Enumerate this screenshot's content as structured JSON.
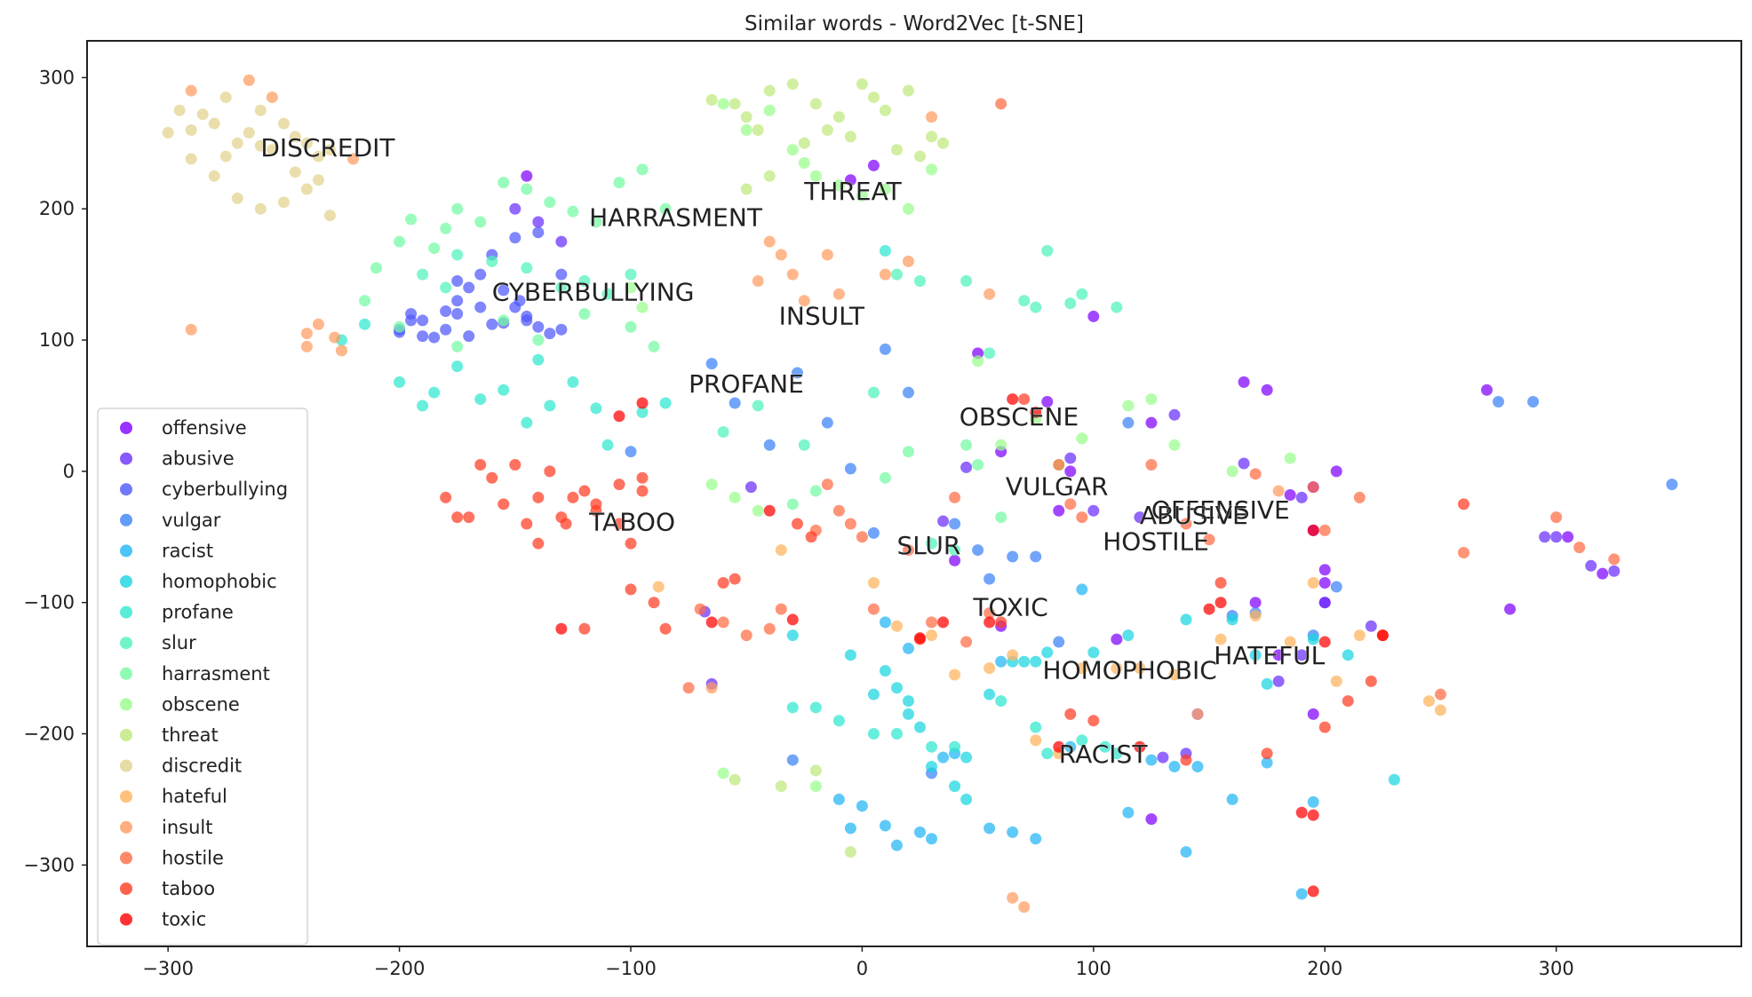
{
  "chart_data": {
    "type": "scatter",
    "title": "Similar words - Word2Vec [t-SNE]",
    "xlabel": "",
    "ylabel": "",
    "xlim": [
      -335,
      380
    ],
    "ylim": [
      -362,
      328
    ],
    "xticks": [
      -300,
      -200,
      -100,
      0,
      100,
      200,
      300
    ],
    "yticks": [
      300,
      200,
      100,
      0,
      -100,
      -200,
      -300
    ],
    "xtick_labels": [
      "−300",
      "−200",
      "−100",
      "0",
      "100",
      "200",
      "300"
    ],
    "ytick_labels": [
      "300",
      "200",
      "100",
      "0",
      "−100",
      "−200",
      "−300"
    ],
    "grid": false,
    "legend_position": "lower-left",
    "series": [
      {
        "name": "offensive",
        "color": "#8000ff",
        "label": "OFFENSIVE",
        "label_pos": [
          125,
          -36
        ],
        "x": [
          -145,
          -5,
          5,
          50,
          60,
          80,
          90,
          100,
          125,
          165,
          175,
          185,
          170,
          180,
          200,
          200,
          205,
          195,
          200,
          305,
          320,
          280,
          270,
          40,
          60,
          85,
          195,
          145,
          125,
          110,
          195
        ],
        "y": [
          225,
          222,
          233,
          90,
          15,
          53,
          0,
          118,
          37,
          68,
          62,
          -18,
          -100,
          -140,
          -85,
          -75,
          0,
          -185,
          -100,
          -50,
          -78,
          -105,
          62,
          -68,
          -118,
          -30,
          -45,
          -185,
          -265,
          -128,
          -12
        ]
      },
      {
        "name": "abusive",
        "color": "#6a2efd",
        "label": "ABUSIVE",
        "label_pos": [
          120,
          -40
        ],
        "x": [
          -150,
          -140,
          -130,
          -48,
          -68,
          -65,
          35,
          45,
          90,
          135,
          140,
          165,
          180,
          190,
          220,
          295,
          300,
          315,
          325,
          190,
          200,
          130,
          100,
          120
        ],
        "y": [
          200,
          190,
          175,
          -12,
          -107,
          -162,
          -38,
          3,
          10,
          43,
          -215,
          6,
          -160,
          -140,
          -118,
          -50,
          -50,
          -72,
          -76,
          -20,
          -100,
          -218,
          -30,
          -35
        ]
      },
      {
        "name": "cyberbullying",
        "color": "#4f58fb",
        "label": "CYBERBULLYING",
        "label_pos": [
          -160,
          130
        ],
        "x": [
          -200,
          -195,
          -190,
          -185,
          -180,
          -175,
          -170,
          -165,
          -160,
          -155,
          -150,
          -145,
          -140,
          -135,
          -130,
          -200,
          -180,
          -160,
          -145,
          -130,
          -175,
          -165,
          -150,
          -140,
          -195,
          -190,
          -175,
          -155,
          -170,
          -148
        ],
        "y": [
          108,
          120,
          115,
          102,
          122,
          130,
          140,
          150,
          165,
          138,
          125,
          118,
          110,
          105,
          150,
          106,
          108,
          112,
          115,
          108,
          145,
          125,
          178,
          182,
          115,
          103,
          120,
          113,
          103,
          130
        ]
      },
      {
        "name": "vulgar",
        "color": "#3b82f6",
        "label": "VULGAR",
        "label_pos": [
          62,
          -18
        ],
        "x": [
          -65,
          -55,
          -40,
          -28,
          -15,
          -5,
          5,
          10,
          20,
          40,
          55,
          65,
          75,
          85,
          115,
          160,
          170,
          195,
          205,
          275,
          290,
          350,
          30,
          -100,
          50,
          -30
        ],
        "y": [
          82,
          52,
          20,
          75,
          37,
          2,
          -47,
          93,
          60,
          -40,
          -82,
          -65,
          -65,
          -130,
          37,
          -110,
          -108,
          -125,
          -88,
          53,
          53,
          -10,
          -230,
          15,
          -60,
          -220
        ]
      },
      {
        "name": "racist",
        "color": "#21b6f5",
        "label": "RACIST",
        "label_pos": [
          85,
          -222
        ],
        "x": [
          -5,
          -10,
          0,
          10,
          15,
          25,
          30,
          40,
          55,
          65,
          75,
          90,
          115,
          135,
          140,
          160,
          175,
          190,
          195,
          145,
          125,
          35,
          95,
          20,
          10,
          60
        ],
        "y": [
          -272,
          -250,
          -255,
          -270,
          -285,
          -275,
          -280,
          -215,
          -272,
          -275,
          -280,
          -210,
          -260,
          -225,
          -290,
          -250,
          -222,
          -322,
          -252,
          -225,
          -220,
          -218,
          -90,
          -135,
          -115,
          -145
        ]
      },
      {
        "name": "homophobic",
        "color": "#18d5e0",
        "label": "HOMOPHOBIC",
        "label_pos": [
          78,
          -158
        ],
        "x": [
          -30,
          -5,
          5,
          10,
          15,
          20,
          25,
          30,
          40,
          45,
          55,
          65,
          70,
          75,
          80,
          100,
          115,
          140,
          160,
          170,
          175,
          195,
          230,
          210,
          20,
          45
        ],
        "y": [
          -125,
          -140,
          -170,
          -152,
          -165,
          -185,
          -195,
          -225,
          -240,
          -218,
          -170,
          -145,
          -145,
          -145,
          -138,
          -138,
          -125,
          -113,
          -113,
          -140,
          -162,
          -128,
          -235,
          -140,
          -175,
          -250
        ]
      },
      {
        "name": "profane",
        "color": "#2ee8cf",
        "label": "PROFANE",
        "label_pos": [
          -75,
          60
        ],
        "x": [
          -225,
          -215,
          -200,
          -190,
          -185,
          -175,
          -165,
          -155,
          -145,
          -135,
          -125,
          -115,
          -110,
          -95,
          -85,
          -30,
          -20,
          -10,
          5,
          15,
          30,
          40,
          60,
          75,
          80,
          95,
          105,
          110,
          -140,
          10
        ],
        "y": [
          100,
          112,
          68,
          50,
          60,
          80,
          55,
          62,
          37,
          50,
          68,
          48,
          20,
          45,
          52,
          -180,
          -180,
          -190,
          -200,
          -200,
          -210,
          -210,
          -175,
          -195,
          -215,
          -205,
          -210,
          -215,
          85,
          168
        ]
      },
      {
        "name": "slur",
        "color": "#4df2b8",
        "label": "SLUR",
        "label_pos": [
          15,
          -63
        ],
        "x": [
          -190,
          -180,
          -175,
          -160,
          -145,
          -130,
          -120,
          -110,
          -100,
          5,
          15,
          25,
          45,
          55,
          70,
          75,
          80,
          90,
          95,
          110,
          30,
          40,
          -60,
          -25,
          -45
        ],
        "y": [
          150,
          140,
          165,
          160,
          155,
          140,
          145,
          135,
          150,
          60,
          150,
          145,
          145,
          90,
          130,
          125,
          168,
          128,
          135,
          125,
          -55,
          -60,
          30,
          20,
          50
        ]
      },
      {
        "name": "harrasment",
        "color": "#73fba2",
        "label": "HARRASMENT",
        "label_pos": [
          -118,
          187
        ],
        "x": [
          -215,
          -210,
          -200,
          -195,
          -185,
          -180,
          -175,
          -165,
          -155,
          -145,
          -135,
          -125,
          -115,
          -105,
          -95,
          -85,
          -200,
          -175,
          -155,
          -140,
          -120,
          -100,
          -90,
          -30,
          -20,
          10,
          20,
          45,
          50,
          60
        ],
        "y": [
          130,
          155,
          175,
          192,
          170,
          185,
          200,
          190,
          220,
          215,
          205,
          198,
          190,
          220,
          230,
          200,
          110,
          95,
          115,
          100,
          120,
          110,
          95,
          -25,
          -15,
          -5,
          15,
          20,
          5,
          -35
        ]
      },
      {
        "name": "obscene",
        "color": "#98fe8a",
        "label": "OBSCENE",
        "label_pos": [
          42,
          35
        ],
        "x": [
          -100,
          -95,
          -60,
          -50,
          -40,
          -30,
          -25,
          -20,
          -10,
          0,
          10,
          20,
          30,
          50,
          60,
          75,
          85,
          95,
          115,
          125,
          135,
          160,
          185,
          -65,
          -55,
          -45,
          -60,
          -20
        ],
        "y": [
          140,
          125,
          280,
          260,
          275,
          245,
          235,
          225,
          218,
          210,
          215,
          200,
          230,
          84,
          20,
          40,
          5,
          25,
          50,
          55,
          20,
          0,
          10,
          -10,
          -20,
          -30,
          -230,
          -240
        ]
      },
      {
        "name": "threat",
        "color": "#bfe97b",
        "label": "THREAT",
        "label_pos": [
          -25,
          207
        ],
        "x": [
          -65,
          -55,
          -50,
          -45,
          -40,
          -30,
          -20,
          -10,
          0,
          5,
          10,
          20,
          30,
          35,
          -50,
          -40,
          -25,
          -15,
          -5,
          15,
          25,
          -55,
          -35,
          -20,
          -5
        ],
        "y": [
          283,
          280,
          270,
          260,
          290,
          295,
          280,
          270,
          295,
          285,
          275,
          290,
          255,
          250,
          215,
          225,
          250,
          260,
          255,
          245,
          240,
          -235,
          -240,
          -228,
          -290
        ]
      },
      {
        "name": "discredit",
        "color": "#e2d28c",
        "label": "DISCREDIT",
        "label_pos": [
          -260,
          240
        ],
        "x": [
          -300,
          -295,
          -290,
          -285,
          -280,
          -275,
          -270,
          -265,
          -260,
          -255,
          -250,
          -245,
          -240,
          -235,
          -230,
          -290,
          -280,
          -270,
          -260,
          -250,
          -240,
          -230,
          -275,
          -245,
          -235,
          -260
        ],
        "y": [
          258,
          275,
          260,
          272,
          265,
          285,
          250,
          258,
          275,
          245,
          265,
          255,
          250,
          240,
          245,
          238,
          225,
          208,
          200,
          205,
          215,
          195,
          240,
          228,
          222,
          248
        ]
      },
      {
        "name": "hateful",
        "color": "#ffb35c",
        "label": "HATEFUL",
        "label_pos": [
          152,
          -147
        ],
        "x": [
          -88,
          -35,
          5,
          15,
          30,
          40,
          55,
          65,
          75,
          85,
          95,
          110,
          120,
          135,
          145,
          155,
          170,
          185,
          195,
          205,
          215,
          245,
          250
        ],
        "y": [
          -88,
          -60,
          -85,
          -118,
          -125,
          -155,
          -150,
          -140,
          -205,
          -215,
          -150,
          -150,
          -150,
          -155,
          -185,
          -128,
          -110,
          -130,
          -85,
          -160,
          -125,
          -175,
          -182
        ]
      },
      {
        "name": "insult",
        "color": "#ff9b5e",
        "label": "INSULT",
        "label_pos": [
          -36,
          112
        ],
        "x": [
          -290,
          -265,
          -255,
          -240,
          -240,
          -235,
          -228,
          -225,
          -220,
          -290,
          -45,
          -40,
          -35,
          -30,
          -25,
          -15,
          -10,
          10,
          20,
          30,
          55,
          65,
          70,
          -65,
          180
        ],
        "y": [
          290,
          298,
          285,
          105,
          95,
          112,
          102,
          92,
          238,
          108,
          145,
          175,
          165,
          150,
          130,
          165,
          135,
          150,
          160,
          270,
          135,
          -325,
          -332,
          -165,
          -15
        ]
      },
      {
        "name": "hostile",
        "color": "#ff6b43",
        "label": "HOSTILE",
        "label_pos": [
          104,
          -60
        ],
        "x": [
          -75,
          -70,
          -60,
          -50,
          -40,
          -35,
          -20,
          -15,
          -10,
          -5,
          0,
          5,
          20,
          30,
          40,
          45,
          55,
          85,
          90,
          95,
          125,
          140,
          150,
          170,
          195,
          200,
          215,
          250,
          260,
          300,
          310,
          325,
          60
        ],
        "y": [
          -165,
          -105,
          -115,
          -125,
          -120,
          -105,
          -45,
          -10,
          -30,
          -40,
          -50,
          -105,
          -60,
          -115,
          -20,
          -130,
          -108,
          5,
          -25,
          -35,
          5,
          -40,
          -52,
          -2,
          -12,
          -45,
          -20,
          -170,
          -62,
          -35,
          -58,
          -67,
          280
        ]
      },
      {
        "name": "taboo",
        "color": "#ff3c22",
        "label": "TABOO",
        "label_pos": [
          -118,
          -45
        ],
        "x": [
          -180,
          -175,
          -165,
          -160,
          -150,
          -145,
          -140,
          -135,
          -130,
          -125,
          -120,
          -115,
          -105,
          -100,
          -95,
          -90,
          -85,
          -170,
          -155,
          -140,
          -128,
          -115,
          -105,
          -95,
          -120,
          -100,
          -60,
          -55,
          -28,
          -22,
          25,
          60,
          70,
          90,
          100,
          140,
          155,
          175,
          200,
          210,
          220,
          225,
          260
        ],
        "y": [
          -20,
          -35,
          5,
          -5,
          5,
          -40,
          -55,
          0,
          -35,
          -20,
          -15,
          -30,
          -40,
          -55,
          -15,
          -100,
          -120,
          -35,
          -25,
          -20,
          -40,
          -25,
          -10,
          -5,
          -120,
          -90,
          -85,
          -82,
          -40,
          -50,
          -128,
          -115,
          55,
          -185,
          -190,
          -220,
          -85,
          -215,
          -195,
          -175,
          -160,
          -125,
          -25
        ]
      },
      {
        "name": "toxic",
        "color": "#ff0000",
        "label": "TOXIC",
        "label_pos": [
          48,
          -110
        ],
        "x": [
          -105,
          -95,
          -65,
          -40,
          -30,
          25,
          35,
          55,
          65,
          75,
          85,
          120,
          150,
          155,
          190,
          195,
          200,
          225,
          195,
          -130,
          195
        ],
        "y": [
          42,
          52,
          -115,
          -30,
          -113,
          -127,
          -115,
          -115,
          55,
          45,
          -210,
          -210,
          -105,
          -100,
          -260,
          -320,
          -130,
          -125,
          -45,
          -120,
          -262
        ]
      }
    ]
  }
}
